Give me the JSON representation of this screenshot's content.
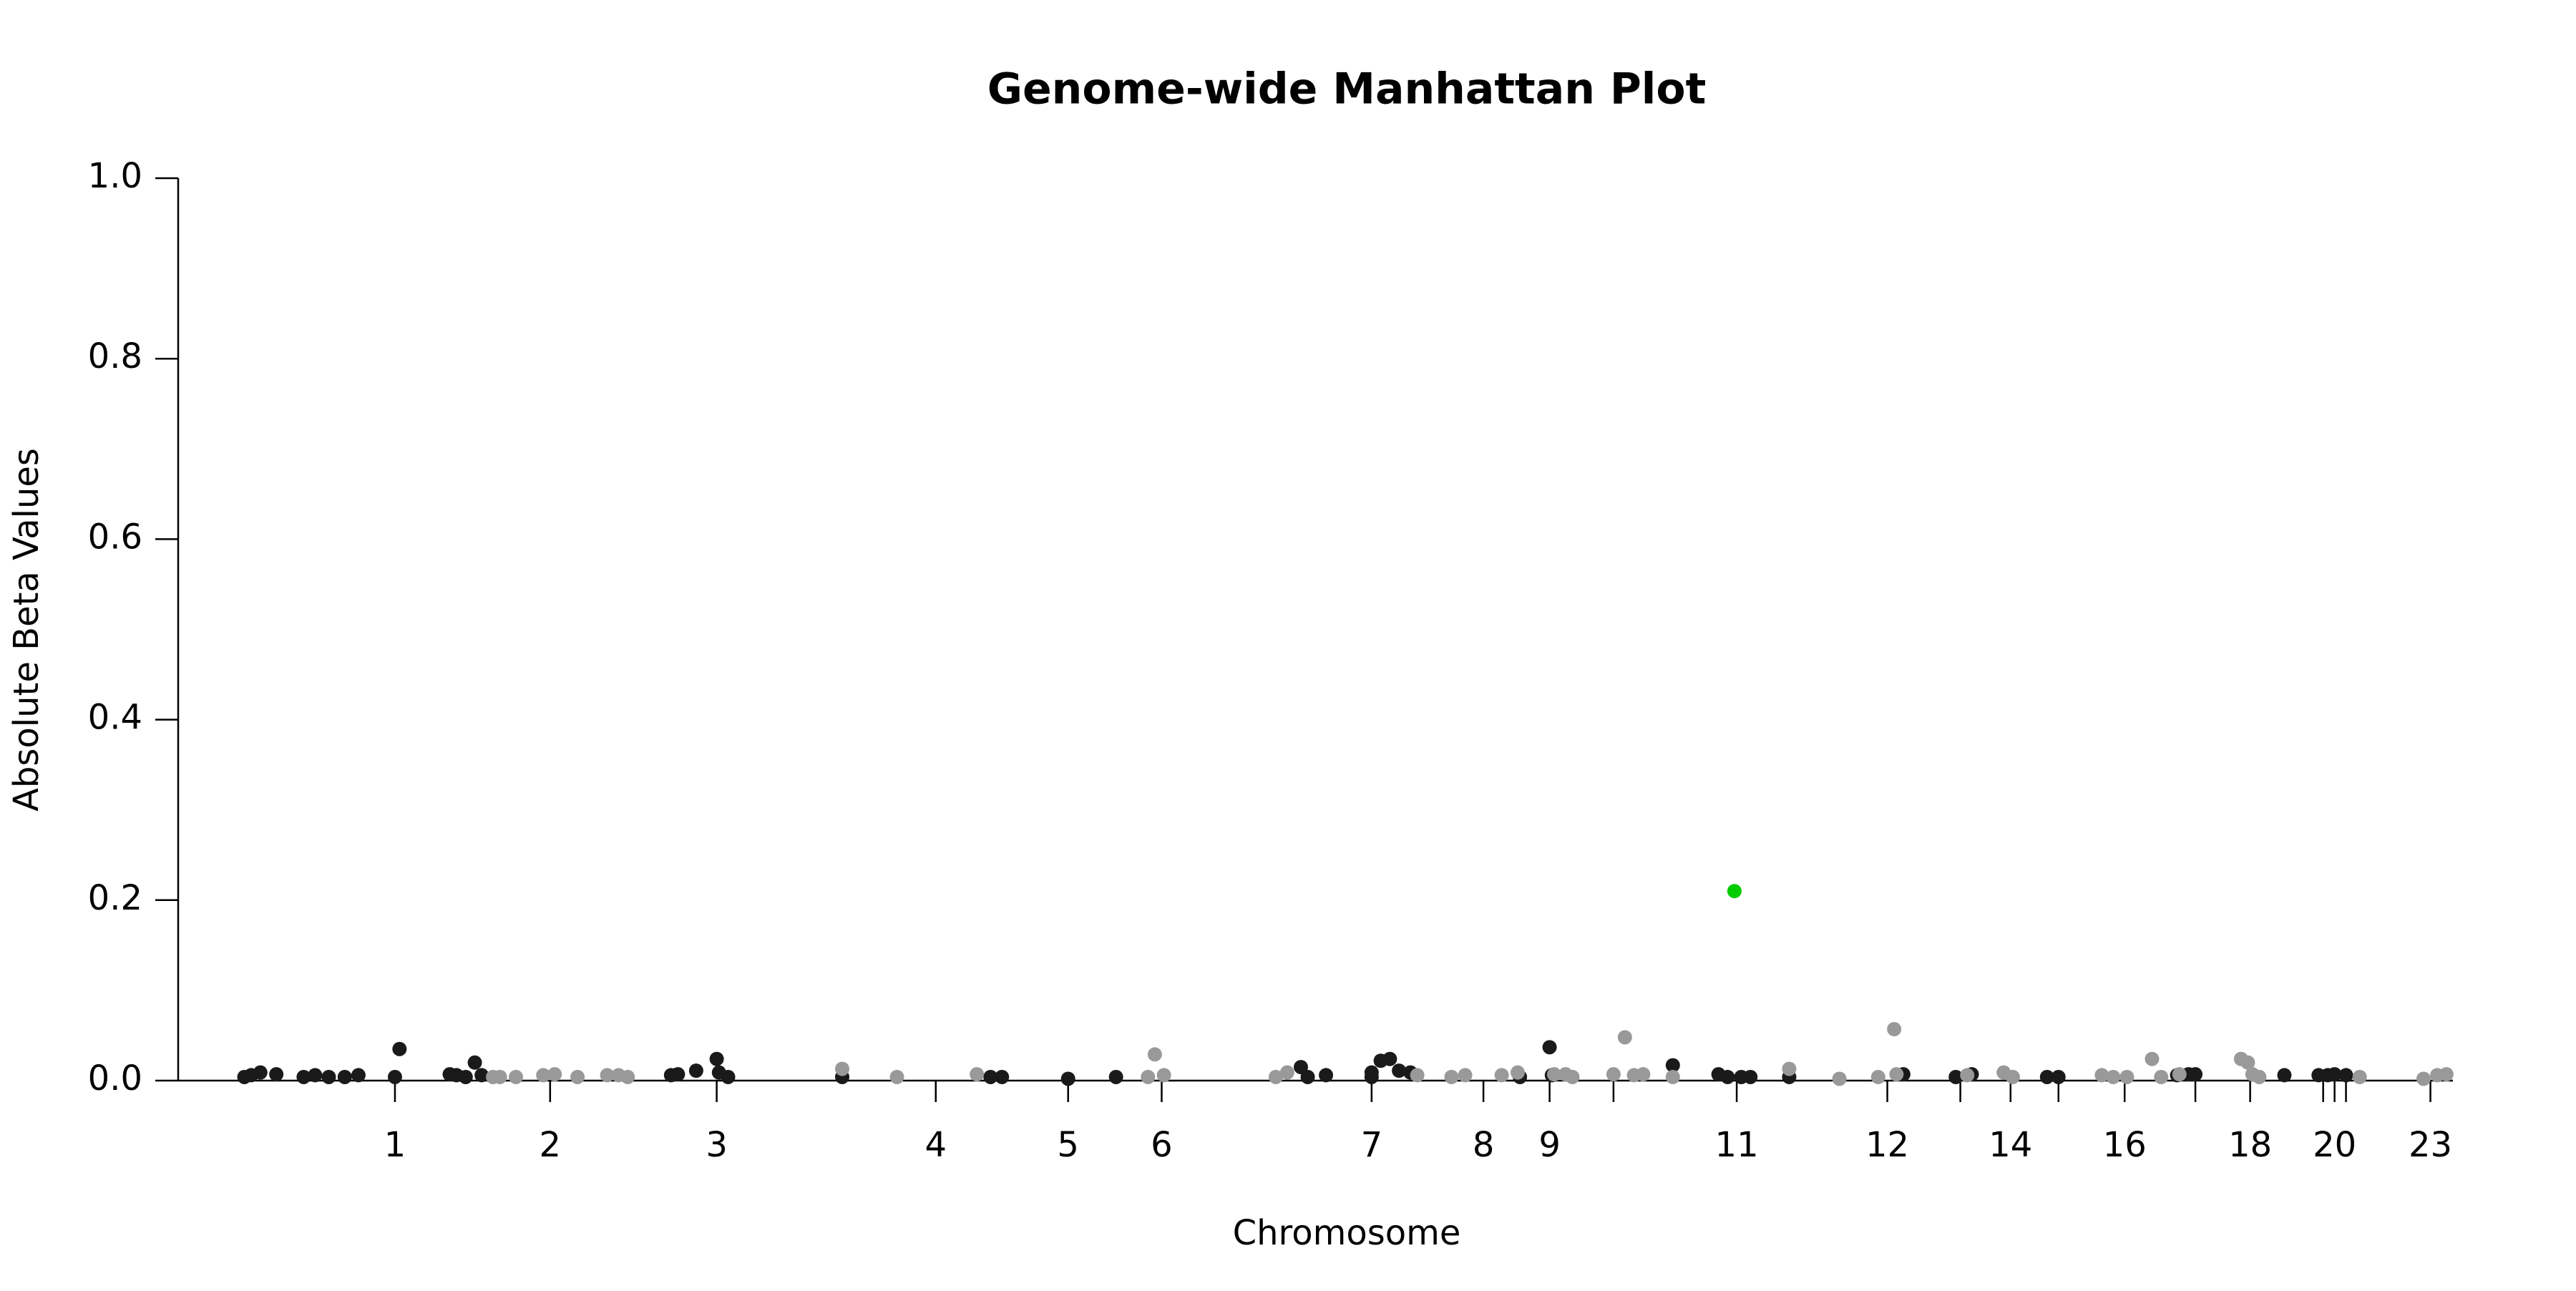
{
  "chart_data": {
    "type": "scatter",
    "title": "Genome-wide Manhattan Plot",
    "x_label": "Chromosome",
    "y_label": "Absolute Beta Values",
    "xlim": [
      0,
      100
    ],
    "ylim": [
      0,
      1.0
    ],
    "yticks": [
      {
        "value": 0,
        "label": "0.0"
      },
      0.2,
      0.4,
      0.6,
      0.8,
      {
        "value": 1.0,
        "label": "1.0"
      }
    ],
    "xticks": [
      {
        "value": 9.5,
        "label": "1"
      },
      {
        "value": 16.3,
        "label": "2"
      },
      {
        "value": 23.6,
        "label": "3"
      },
      {
        "value": 33.2,
        "label": "4"
      },
      {
        "value": 39.0,
        "label": "5"
      },
      {
        "value": 43.1,
        "label": "6"
      },
      {
        "value": 52.3,
        "label": "7"
      },
      {
        "value": 57.2,
        "label": "8"
      },
      {
        "value": 60.1,
        "label": "9"
      },
      {
        "value": 62.9,
        "label": null
      },
      {
        "value": 68.3,
        "label": "11"
      },
      {
        "value": 74.9,
        "label": "12"
      },
      {
        "value": 78.1,
        "label": null
      },
      {
        "value": 80.3,
        "label": "14"
      },
      {
        "value": 82.4,
        "label": null
      },
      {
        "value": 85.3,
        "label": "16"
      },
      {
        "value": 88.4,
        "label": null
      },
      {
        "value": 90.8,
        "label": "18"
      },
      {
        "value": 94.0,
        "label": null
      },
      {
        "value": 94.5,
        "label": "20"
      },
      {
        "value": 95.0,
        "label": null
      },
      {
        "value": 98.7,
        "label": "23"
      }
    ],
    "series": [
      {
        "color": "#1a1a1a",
        "x": [
          2.9,
          3.2,
          3.6,
          4.3,
          5.5,
          6.0,
          6.6,
          7.3,
          7.9,
          9.5,
          9.7,
          11.9,
          12.2,
          12.6,
          13.0,
          13.3,
          21.6,
          21.9,
          22.7,
          23.6,
          23.7,
          24.1,
          29.1,
          35.6,
          36.1,
          39.0,
          41.1,
          49.2,
          49.5,
          50.3,
          52.3,
          52.3,
          52.7,
          53.1,
          53.5,
          54.0,
          58.8,
          60.1,
          60.2,
          65.5,
          67.5,
          67.9,
          68.5,
          68.9,
          70.6,
          75.6,
          77.9,
          78.6,
          81.9,
          82.4,
          87.6,
          88.1,
          88.4,
          92.3,
          93.8,
          94.2,
          94.5,
          95.0
        ],
        "values": [
          0.004,
          0.006,
          0.009,
          0.007,
          0.004,
          0.006,
          0.004,
          0.004,
          0.006,
          0.004,
          0.035,
          0.007,
          0.006,
          0.004,
          0.02,
          0.006,
          0.006,
          0.007,
          0.011,
          0.024,
          0.009,
          0.004,
          0.004,
          0.004,
          0.004,
          0.002,
          0.004,
          0.015,
          0.004,
          0.006,
          0.009,
          0.004,
          0.022,
          0.024,
          0.011,
          0.009,
          0.004,
          0.037,
          0.006,
          0.017,
          0.007,
          0.004,
          0.004,
          0.004,
          0.004,
          0.007,
          0.004,
          0.007,
          0.004,
          0.004,
          0.006,
          0.007,
          0.007,
          0.006,
          0.006,
          0.006,
          0.007,
          0.006
        ]
      },
      {
        "color": "#999999",
        "x": [
          13.8,
          14.1,
          14.8,
          16.0,
          16.5,
          17.5,
          18.8,
          19.3,
          19.7,
          29.1,
          31.5,
          35.0,
          42.5,
          42.8,
          43.2,
          48.1,
          48.6,
          54.3,
          55.8,
          56.4,
          58.0,
          58.7,
          60.3,
          60.8,
          61.1,
          62.9,
          63.4,
          63.8,
          64.2,
          65.5,
          70.6,
          72.8,
          74.5,
          75.2,
          75.3,
          78.4,
          80.0,
          80.4,
          84.3,
          84.8,
          85.4,
          86.5,
          86.9,
          87.7,
          90.4,
          90.7,
          90.9,
          91.2,
          95.6,
          98.4,
          99.0,
          99.4
        ],
        "values": [
          0.004,
          0.004,
          0.004,
          0.006,
          0.007,
          0.004,
          0.006,
          0.006,
          0.004,
          0.013,
          0.004,
          0.007,
          0.004,
          0.029,
          0.006,
          0.004,
          0.009,
          0.006,
          0.004,
          0.006,
          0.006,
          0.009,
          0.007,
          0.007,
          0.004,
          0.007,
          0.048,
          0.006,
          0.007,
          0.004,
          0.013,
          0.002,
          0.004,
          0.057,
          0.007,
          0.006,
          0.009,
          0.004,
          0.006,
          0.004,
          0.004,
          0.024,
          0.004,
          0.007,
          0.024,
          0.02,
          0.007,
          0.004,
          0.004,
          0.002,
          0.006,
          0.007
        ]
      },
      {
        "color": "#00cc00",
        "x": [
          68.2
        ],
        "values": [
          0.21
        ]
      }
    ]
  }
}
